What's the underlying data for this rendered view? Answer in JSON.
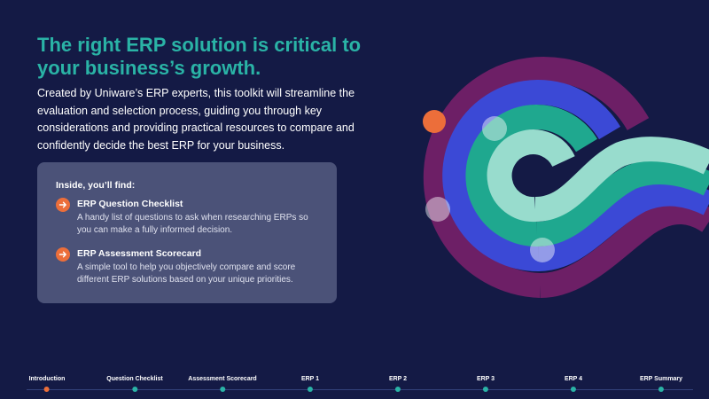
{
  "hero": {
    "headline": "The right ERP solution is critical to your business’s growth.",
    "intro": "Created by Uniware’s ERP experts, this toolkit will streamline the evaluation and selection process, guiding you through key considerations and providing practical resources to compare and confidently decide the best ERP for your business."
  },
  "card": {
    "heading": "Inside, you’ll find:",
    "items": [
      {
        "title": "ERP Question Checklist",
        "description": "A handy list of questions to ask when researching ERPs so you can make a fully informed decision.",
        "icon": "arrow-right-icon"
      },
      {
        "title": "ERP Assessment Scorecard",
        "description": "A simple tool to help you objectively compare and score different ERP solutions based on your unique priorities.",
        "icon": "arrow-right-icon"
      }
    ]
  },
  "timeline": {
    "active_index": 0,
    "steps": [
      {
        "label": "Introduction"
      },
      {
        "label": "Question Checklist"
      },
      {
        "label": "Assessment Scorecard"
      },
      {
        "label": "ERP 1"
      },
      {
        "label": "ERP 2"
      },
      {
        "label": "ERP 3"
      },
      {
        "label": "ERP 4"
      },
      {
        "label": "ERP Summary"
      }
    ]
  },
  "colors": {
    "background": "#141a45",
    "headline": "#2ab3a6",
    "accent": "#ec6e3a",
    "card": "#4b5278",
    "ring_purple": "#6d1f66",
    "ring_blue": "#3b49d6",
    "ring_teal": "#1fa88f",
    "ring_mint": "#98dccd"
  }
}
